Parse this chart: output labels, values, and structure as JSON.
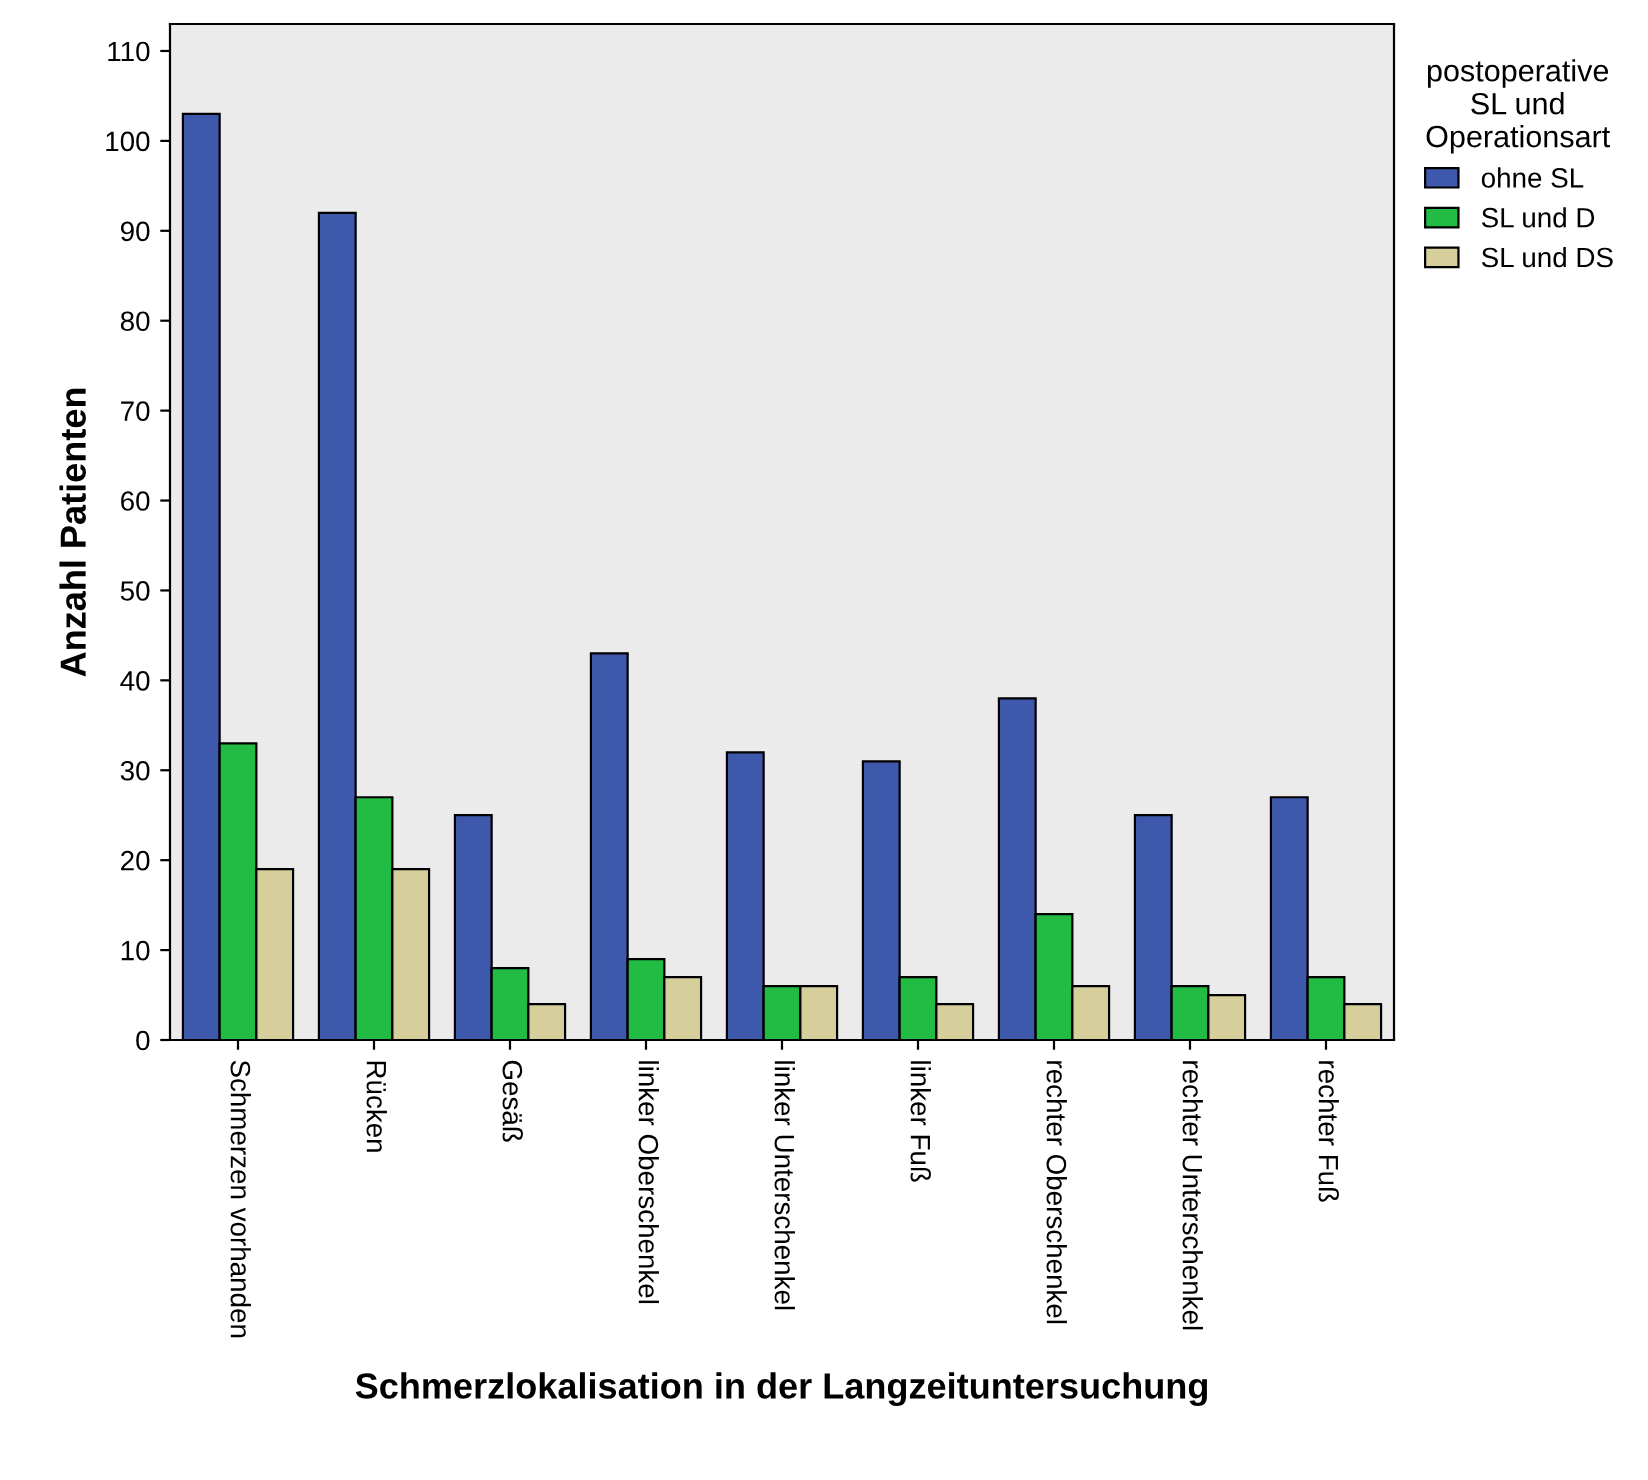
{
  "chart_data": {
    "type": "bar",
    "xlabel": "Schmerzlokalisation in der Langzeituntersuchung",
    "ylabel": "Anzahl Patienten",
    "categories": [
      "Schmerzen vorhanden",
      "Rücken",
      "Gesäß",
      "linker Oberschenkel",
      "linker Unterschenkel",
      "linker Fuß",
      "rechter Oberschenkel",
      "rechter Unterschenkel",
      "rechter Fuß"
    ],
    "series": [
      {
        "name": "ohne SL",
        "color": "#3e58ac",
        "values": [
          103,
          92,
          25,
          43,
          32,
          31,
          38,
          25,
          27
        ]
      },
      {
        "name": "SL und D",
        "color": "#22bb44",
        "values": [
          33,
          27,
          8,
          9,
          6,
          7,
          14,
          6,
          7
        ]
      },
      {
        "name": "SL und DS",
        "color": "#d6cf9c",
        "values": [
          19,
          19,
          4,
          7,
          6,
          4,
          6,
          5,
          4
        ]
      }
    ],
    "legend_title": "postoperative\nSL und\nOperationsart",
    "ylim": [
      0,
      113
    ],
    "yticks": [
      0,
      10,
      20,
      30,
      40,
      50,
      60,
      70,
      80,
      90,
      100,
      110
    ],
    "grid": false,
    "legend": "top right"
  }
}
